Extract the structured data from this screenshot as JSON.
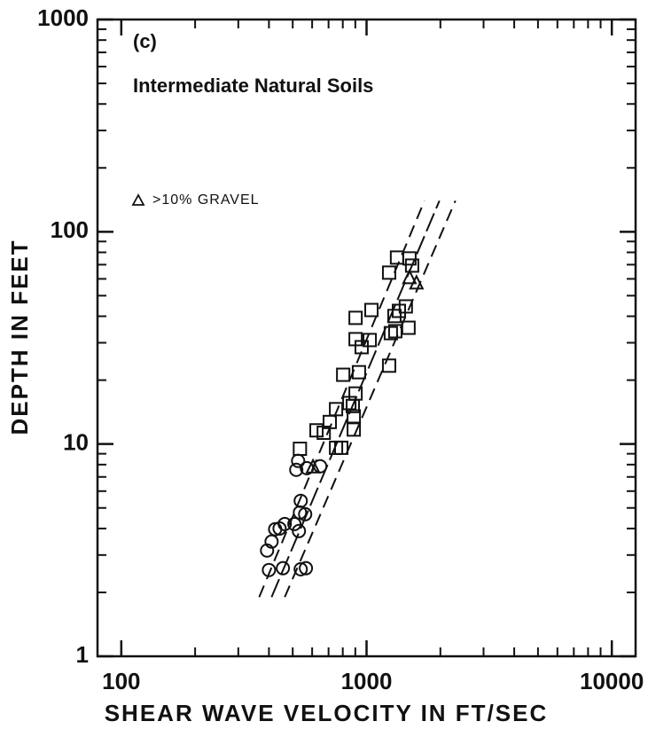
{
  "chart_data": {
    "type": "scatter",
    "annotations": [
      "(c)",
      "Intermediate Natural Soils"
    ],
    "xlabel": "SHEAR WAVE VELOCITY IN FT/SEC",
    "ylabel": "DEPTH IN FEET",
    "xscale": "log",
    "yscale": "log",
    "xlim": [
      80,
      12500
    ],
    "ylim": [
      1,
      1000
    ],
    "xticks": [
      100,
      1000,
      10000
    ],
    "yticks": [
      1,
      10,
      100,
      1000
    ],
    "xminorticks": [
      200,
      300,
      400,
      500,
      600,
      700,
      800,
      900,
      2000,
      3000,
      4000,
      5000,
      6000,
      7000,
      8000,
      9000
    ],
    "yminorticks": [
      2,
      3,
      4,
      5,
      6,
      7,
      8,
      9,
      20,
      30,
      40,
      50,
      60,
      70,
      80,
      90,
      200,
      300,
      400,
      500,
      600,
      700,
      800,
      900
    ],
    "color": "#111111",
    "series": [
      {
        "marker": "square",
        "x": [
          1331,
          1496,
          1534,
          1236,
          1446,
          1355,
          1299,
          1483,
          1256,
          1310,
          1236,
          902,
          902,
          1047,
          1030,
          955,
          931,
          902,
          879,
          887,
          887,
          803,
          851,
          751,
          708,
          789,
          751,
          625,
          669,
          535
        ],
        "values": [
          75.6,
          74.9,
          69.3,
          64.2,
          44.5,
          42.4,
          40.1,
          35.3,
          33.3,
          34.0,
          23.4,
          39.3,
          31.2,
          42.8,
          30.9,
          28.6,
          21.8,
          17.3,
          15.1,
          13.5,
          11.7,
          21.2,
          15.6,
          14.6,
          12.7,
          9.6,
          9.6,
          11.6,
          11.3,
          9.5
        ]
      },
      {
        "marker": "circle",
        "x": [
          400,
          456,
          539,
          566,
          393,
          535,
          647,
          410,
          424,
          442,
          464,
          508,
          530,
          562,
          539,
          571,
          526,
          517
        ],
        "values": [
          2.55,
          2.6,
          2.57,
          2.6,
          3.15,
          4.76,
          7.86,
          3.47,
          3.97,
          4.0,
          4.2,
          4.2,
          3.89,
          4.67,
          5.4,
          7.7,
          8.33,
          7.56
        ]
      },
      {
        "marker": "triangle",
        "name": ">10% GRAVEL",
        "x": [
          1598,
          1496,
          605
        ],
        "values": [
          57.2,
          60.6,
          7.78
        ]
      }
    ],
    "lines": [
      {
        "x": [
          365,
          1722
        ],
        "values": [
          1.9,
          140
        ]
      },
      {
        "x": [
          410,
          1982
        ],
        "values": [
          1.9,
          140
        ]
      },
      {
        "x": [
          464,
          2303
        ],
        "values": [
          1.9,
          140
        ]
      }
    ]
  }
}
